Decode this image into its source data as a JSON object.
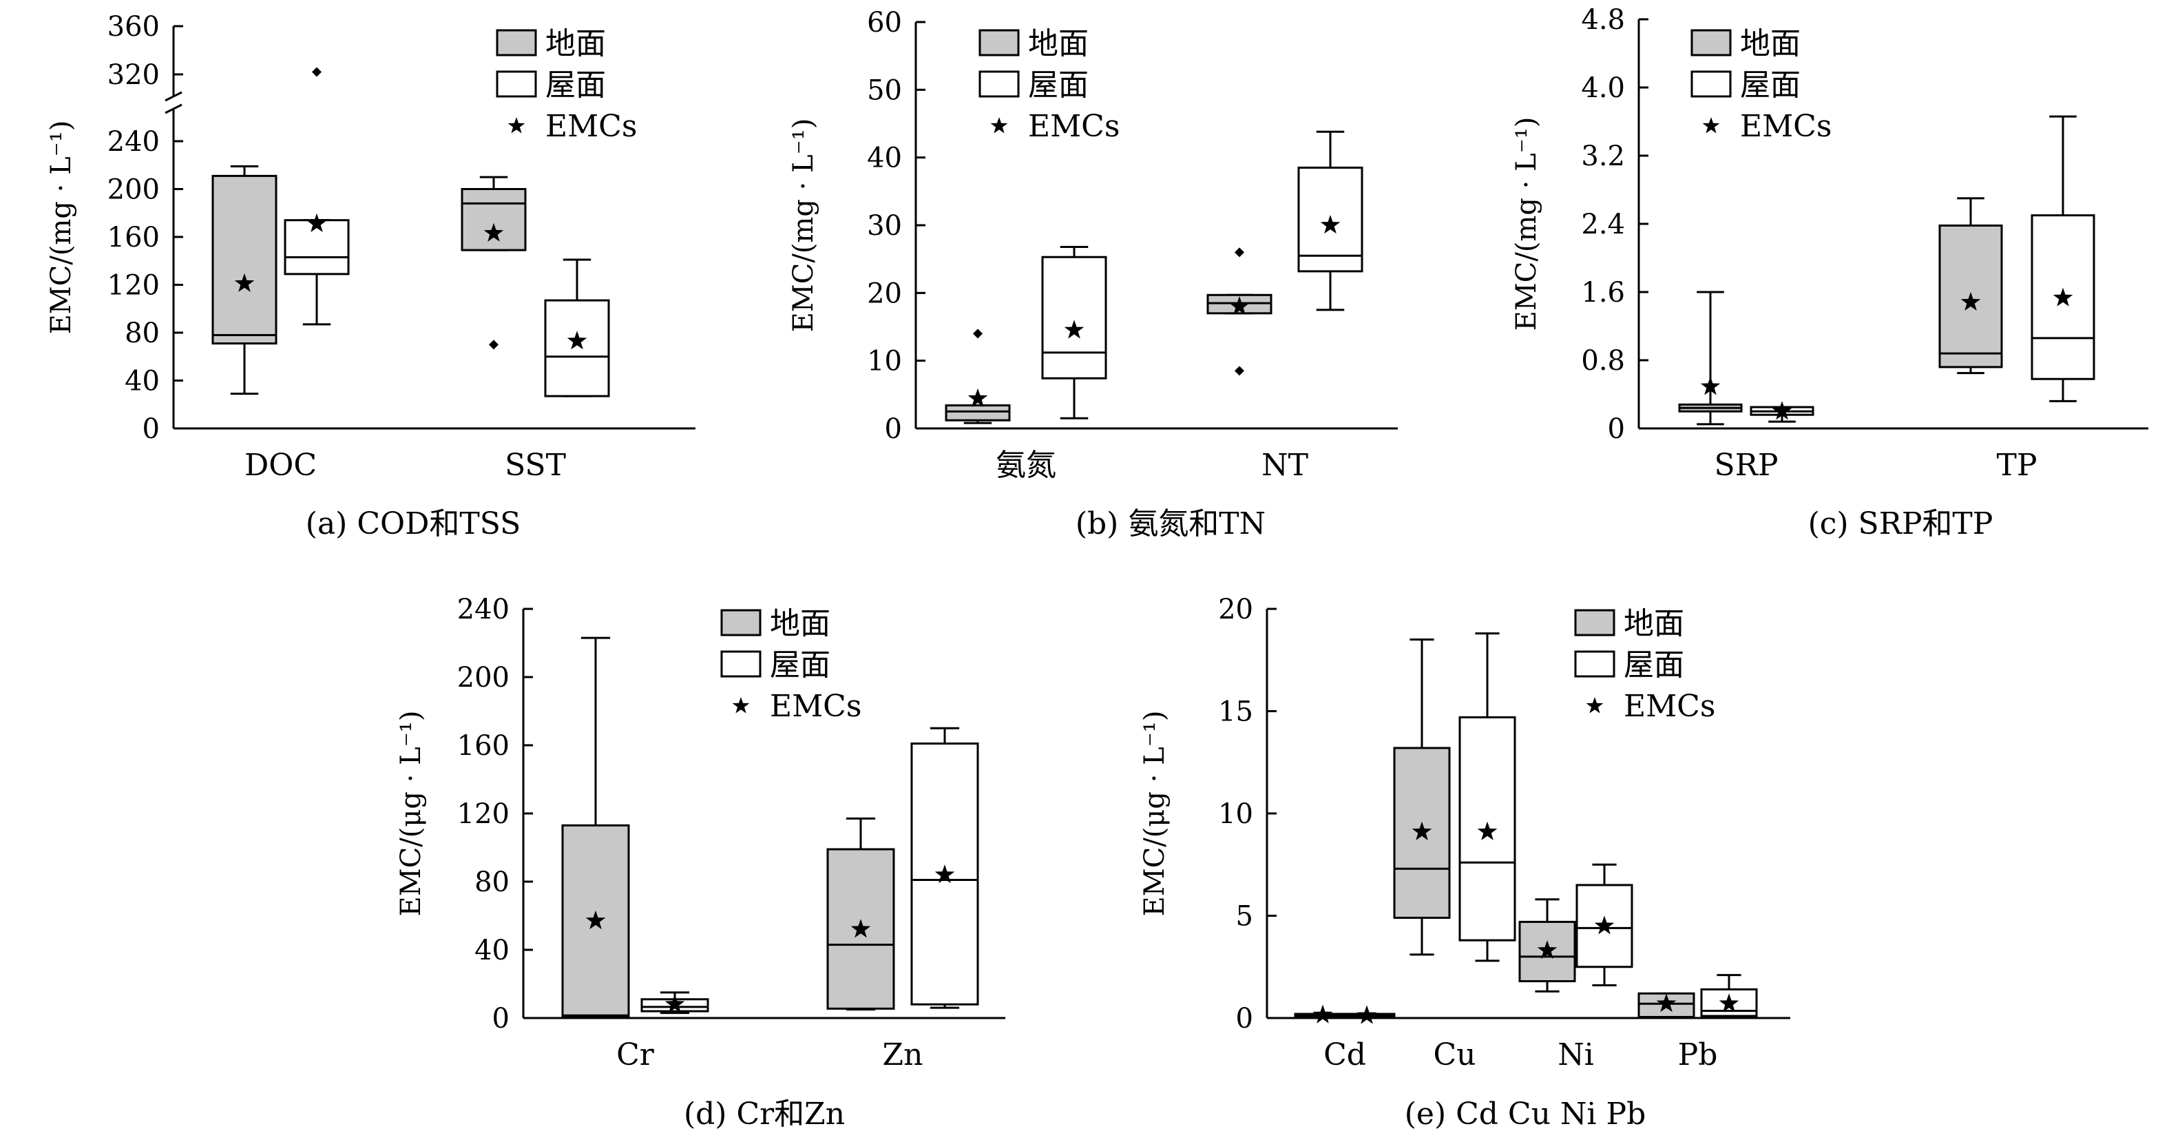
{
  "chart_data": [
    {
      "type": "box",
      "caption": "(a) COD和TSS",
      "ylabel": "EMC/(mg · L⁻¹)",
      "ylim": [
        0,
        360
      ],
      "axis_break": [
        240,
        320
      ],
      "yticks": [
        0,
        40,
        80,
        120,
        160,
        200,
        240,
        320,
        360
      ],
      "categories": [
        "DOC",
        "SST"
      ],
      "legend": [
        "地面",
        "屋面",
        "EMCs"
      ],
      "series": [
        {
          "name": "地面",
          "color": "#c8c8c8",
          "boxes": [
            {
              "category": "DOC",
              "min": 29,
              "q1": 71,
              "median": 78,
              "q3": 211,
              "max": 219,
              "outliers": [],
              "emc": 121
            },
            {
              "category": "SST",
              "min": 149,
              "q1": 149,
              "median": 188,
              "q3": 200,
              "max": 210,
              "outliers": [
                70
              ],
              "emc": 163
            }
          ]
        },
        {
          "name": "屋面",
          "color": "#ffffff",
          "boxes": [
            {
              "category": "DOC",
              "min": 87,
              "q1": 129,
              "median": 143,
              "q3": 174,
              "max": 174,
              "outliers": [
                322
              ],
              "emc": 171
            },
            {
              "category": "SST",
              "min": 27,
              "q1": 27,
              "median": 60,
              "q3": 107,
              "max": 141,
              "outliers": [],
              "emc": 73
            }
          ]
        }
      ]
    },
    {
      "type": "box",
      "caption": "(b) 氨氮和TN",
      "ylabel": "EMC/(mg · L⁻¹)",
      "ylim": [
        0,
        60
      ],
      "yticks": [
        0,
        10,
        20,
        30,
        40,
        50,
        60
      ],
      "categories": [
        "氨氮",
        "NT"
      ],
      "legend": [
        "地面",
        "屋面",
        "EMCs"
      ],
      "series": [
        {
          "name": "地面",
          "color": "#c8c8c8",
          "boxes": [
            {
              "category": "氨氮",
              "min": 0.8,
              "q1": 1.2,
              "median": 2.5,
              "q3": 3.4,
              "max": 3.4,
              "outliers": [
                14
              ],
              "emc": 4.4
            },
            {
              "category": "NT",
              "min": 17,
              "q1": 17,
              "median": 18.5,
              "q3": 19.7,
              "max": 19.7,
              "outliers": [
                26,
                8.5
              ],
              "emc": 18
            }
          ]
        },
        {
          "name": "屋面",
          "color": "#ffffff",
          "boxes": [
            {
              "category": "氨氮",
              "min": 1.5,
              "q1": 7.4,
              "median": 11.2,
              "q3": 25.3,
              "max": 26.8,
              "outliers": [],
              "emc": 14.5
            },
            {
              "category": "NT",
              "min": 17.5,
              "q1": 23.2,
              "median": 25.5,
              "q3": 38.5,
              "max": 43.8,
              "outliers": [],
              "emc": 30
            }
          ]
        }
      ]
    },
    {
      "type": "box",
      "caption": "(c) SRP和TP",
      "ylabel": "EMC/(mg · L⁻¹)",
      "ylim": [
        0,
        4.8
      ],
      "yticks": [
        "0",
        "0.8",
        "1.6",
        "2.4",
        "3.2",
        "4.0",
        "4.8"
      ],
      "categories": [
        "SRP",
        "TP"
      ],
      "legend": [
        "地面",
        "屋面",
        "EMCs"
      ],
      "series": [
        {
          "name": "地面",
          "color": "#c8c8c8",
          "boxes": [
            {
              "category": "SRP",
              "min": 0.05,
              "q1": 0.2,
              "median": 0.24,
              "q3": 0.28,
              "max": 1.6,
              "outliers": [],
              "emc": 0.49
            },
            {
              "category": "TP",
              "min": 0.65,
              "q1": 0.72,
              "median": 0.88,
              "q3": 2.38,
              "max": 2.7,
              "outliers": [],
              "emc": 1.48
            }
          ]
        },
        {
          "name": "屋面",
          "color": "#ffffff",
          "boxes": [
            {
              "category": "SRP",
              "min": 0.08,
              "q1": 0.16,
              "median": 0.2,
              "q3": 0.25,
              "max": 0.25,
              "outliers": [],
              "emc": 0.2
            },
            {
              "category": "TP",
              "min": 0.32,
              "q1": 0.58,
              "median": 1.06,
              "q3": 2.5,
              "max": 3.66,
              "outliers": [],
              "emc": 1.53
            }
          ]
        }
      ]
    },
    {
      "type": "box",
      "caption": "(d) Cr和Zn",
      "ylabel": "EMC/(μg · L⁻¹)",
      "ylim": [
        0,
        240
      ],
      "yticks": [
        0,
        40,
        80,
        120,
        160,
        200,
        240
      ],
      "categories": [
        "Cr",
        "Zn"
      ],
      "legend": [
        "地面",
        "屋面",
        "EMCs"
      ],
      "series": [
        {
          "name": "地面",
          "color": "#c8c8c8",
          "boxes": [
            {
              "category": "Cr",
              "min": 0,
              "q1": 0.5,
              "median": 1.5,
              "q3": 113,
              "max": 223,
              "outliers": [],
              "emc": 57
            },
            {
              "category": "Zn",
              "min": 5,
              "q1": 5.5,
              "median": 43,
              "q3": 99,
              "max": 117,
              "outliers": [],
              "emc": 52
            }
          ]
        },
        {
          "name": "屋面",
          "color": "#ffffff",
          "boxes": [
            {
              "category": "Cr",
              "min": 3,
              "q1": 4,
              "median": 6.5,
              "q3": 11,
              "max": 15,
              "outliers": [],
              "emc": 8
            },
            {
              "category": "Zn",
              "min": 6,
              "q1": 8,
              "median": 81,
              "q3": 161,
              "max": 170,
              "outliers": [],
              "emc": 84
            }
          ]
        }
      ]
    },
    {
      "type": "box",
      "caption": "(e) Cd Cu Ni Pb",
      "ylabel": "EMC/(μg · L⁻¹)",
      "ylim": [
        0,
        20
      ],
      "yticks": [
        0,
        5,
        10,
        15,
        20
      ],
      "categories": [
        "Cd",
        "Cu",
        "Ni",
        "Pb"
      ],
      "legend": [
        "地面",
        "屋面",
        "EMCs"
      ],
      "series": [
        {
          "name": "地面",
          "color": "#c8c8c8",
          "boxes": [
            {
              "category": "Cd",
              "min": 0.05,
              "q1": 0.1,
              "median": 0.15,
              "q3": 0.2,
              "max": 0.2,
              "outliers": [],
              "emc": 0.15
            },
            {
              "category": "Cu",
              "min": 3.1,
              "q1": 4.9,
              "median": 7.3,
              "q3": 13.2,
              "max": 18.5,
              "outliers": [],
              "emc": 9.1
            },
            {
              "category": "Ni",
              "min": 1.3,
              "q1": 1.8,
              "median": 3.0,
              "q3": 4.7,
              "max": 5.8,
              "outliers": [],
              "emc": 3.3
            },
            {
              "category": "Pb",
              "min": 0,
              "q1": 0.05,
              "median": 0.7,
              "q3": 1.2,
              "max": 1.2,
              "outliers": [],
              "emc": 0.7
            }
          ]
        },
        {
          "name": "屋面",
          "color": "#ffffff",
          "boxes": [
            {
              "category": "Cd",
              "min": 0.05,
              "q1": 0.1,
              "median": 0.12,
              "q3": 0.2,
              "max": 0.2,
              "outliers": [],
              "emc": 0.12
            },
            {
              "category": "Cu",
              "min": 2.8,
              "q1": 3.8,
              "median": 7.6,
              "q3": 14.7,
              "max": 18.8,
              "outliers": [],
              "emc": 9.1
            },
            {
              "category": "Ni",
              "min": 1.6,
              "q1": 2.5,
              "median": 4.4,
              "q3": 6.5,
              "max": 7.5,
              "outliers": [],
              "emc": 4.5
            },
            {
              "category": "Pb",
              "min": 0.05,
              "q1": 0.1,
              "median": 0.35,
              "q3": 1.4,
              "max": 2.1,
              "outliers": [],
              "emc": 0.7
            }
          ]
        }
      ]
    }
  ]
}
